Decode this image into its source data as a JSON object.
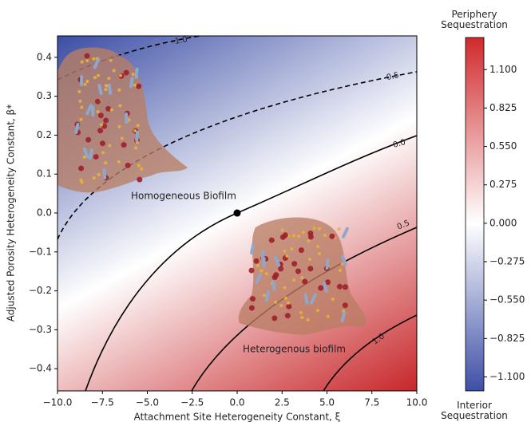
{
  "chart_data": {
    "type": "contour",
    "xlabel": "Attachment Site Heterogeneity Constant, ξ",
    "ylabel": "Adjusted Porosity Heterogeneity Constant, β*",
    "xlim": [
      -10,
      10
    ],
    "ylim": [
      -0.457,
      0.455
    ],
    "xticks": [
      {
        "value": -10,
        "label": "−10.0"
      },
      {
        "value": -7.5,
        "label": "−7.5"
      },
      {
        "value": -5,
        "label": "−5.0"
      },
      {
        "value": -2.5,
        "label": "−2.5"
      },
      {
        "value": 0,
        "label": "0.0"
      },
      2.5,
      {
        "value": 5,
        "label": "5.0"
      },
      7.5,
      {
        "value": 10,
        "label": "10.0"
      }
    ],
    "yticks": [
      {
        "value": -0.4,
        "label": "−0.4"
      },
      {
        "value": -0.3,
        "label": "−0.3"
      },
      {
        "value": -0.2,
        "label": "−0.2"
      },
      {
        "value": -0.1,
        "label": "−0.1"
      },
      {
        "value": 0,
        "label": "0.0"
      },
      0.1,
      0.2,
      0.3,
      0.4
    ],
    "contour_levels": [
      {
        "value": -1,
        "label": "-1.0"
      },
      {
        "value": -0.5,
        "label": "-0.5"
      },
      {
        "value": 0,
        "label": "0.0"
      },
      {
        "value": 0.5,
        "label": "0.5"
      },
      {
        "value": 1,
        "label": "1.0"
      }
    ],
    "point": {
      "x": 0,
      "y": 0,
      "label": "Homogeneous Biofilm"
    },
    "annotation": "Heterogenous biofilm",
    "colorbar": {
      "top_label": "Periphery Sequestration",
      "bottom_label": "Interior Sequestration",
      "clim": [
        -1.2,
        1.33
      ],
      "ticks": [
        {
          "value": 1.1,
          "label": "1.100"
        },
        {
          "value": 0.825,
          "label": "0.825"
        },
        {
          "value": 0.55,
          "label": "0.550"
        },
        {
          "value": 0.275,
          "label": "0.275"
        },
        {
          "value": 0,
          "label": "0.000"
        },
        {
          "value": -0.275,
          "label": "−0.275"
        },
        {
          "value": -0.55,
          "label": "−0.550"
        },
        {
          "value": -0.825,
          "label": "−0.825"
        },
        {
          "value": -1.1,
          "label": "−1.100"
        }
      ]
    }
  }
}
